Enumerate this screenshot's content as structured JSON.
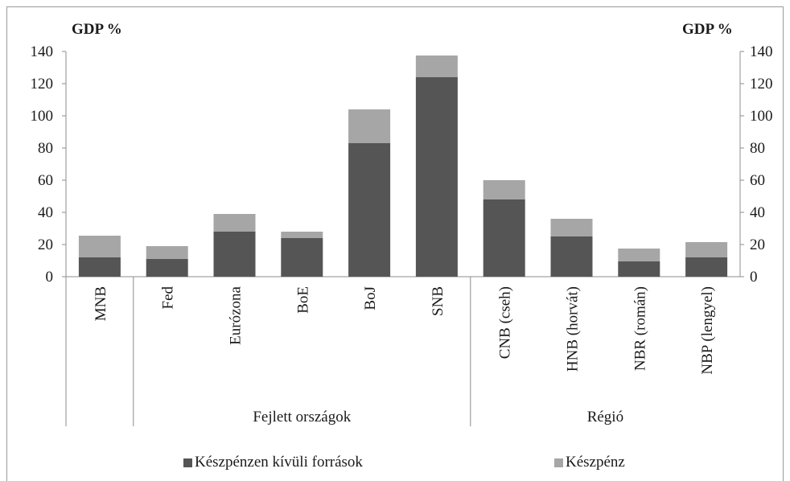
{
  "chart_data": {
    "type": "bar",
    "stacked": true,
    "y_unit_left": "GDP %",
    "y_unit_right": "GDP %",
    "ylim": [
      0,
      140
    ],
    "yticks": [
      0,
      20,
      40,
      60,
      80,
      100,
      120,
      140
    ],
    "grid": false,
    "categories": [
      "MNB",
      "Fed",
      "Eurózona",
      "BoE",
      "BoJ",
      "SNB",
      "CNB (cseh)",
      "HNB (horvát)",
      "NBR (román)",
      "NBP (lengyel)"
    ],
    "groups": [
      {
        "label": "",
        "categories": [
          "MNB"
        ]
      },
      {
        "label": "Fejlett országok",
        "categories": [
          "Fed",
          "Eurózona",
          "BoE",
          "BoJ",
          "SNB"
        ]
      },
      {
        "label": "Régió",
        "categories": [
          "CNB (cseh)",
          "HNB (horvát)",
          "NBR (román)",
          "NBP (lengyel)"
        ]
      }
    ],
    "series": [
      {
        "name": "Készpénzen kívüli források",
        "color": "#555555",
        "values": [
          12,
          11,
          28,
          24,
          83,
          124,
          48,
          25,
          9.5,
          12
        ]
      },
      {
        "name": "Készpénz",
        "color": "#a6a6a6",
        "values": [
          13.5,
          8,
          11,
          4,
          21,
          13.5,
          12,
          11,
          8,
          9.5
        ]
      }
    ],
    "legend_position": "bottom"
  }
}
